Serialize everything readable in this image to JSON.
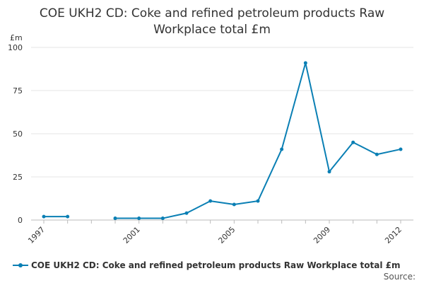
{
  "chart_data": {
    "type": "line",
    "title_lines": [
      "COE UKH2 CD: Coke and refined petroleum products Raw",
      "Workplace total £m"
    ],
    "ylabel": "£m",
    "ylim": [
      0,
      100
    ],
    "yticks": [
      0,
      25,
      50,
      75,
      100
    ],
    "xlim": [
      1997,
      2012
    ],
    "xticks": [
      1997,
      2001,
      2005,
      2009,
      2012
    ],
    "grid": "horizontal",
    "legend_position": "bottom",
    "colors": {
      "series": "#0a7fb4",
      "grid": "#e6e6e6",
      "text": "#333333"
    },
    "series": [
      {
        "name": "COE UKH2 CD: Coke and refined petroleum products Raw Workplace total £m",
        "x": [
          1997,
          1998,
          1999,
          2000,
          2001,
          2002,
          2003,
          2004,
          2005,
          2006,
          2007,
          2008,
          2009,
          2010,
          2011,
          2012
        ],
        "values": [
          2,
          2,
          null,
          1,
          1,
          1,
          4,
          11,
          9,
          11,
          41,
          91,
          28,
          45,
          38,
          41
        ]
      }
    ]
  },
  "source_label": "Source:"
}
